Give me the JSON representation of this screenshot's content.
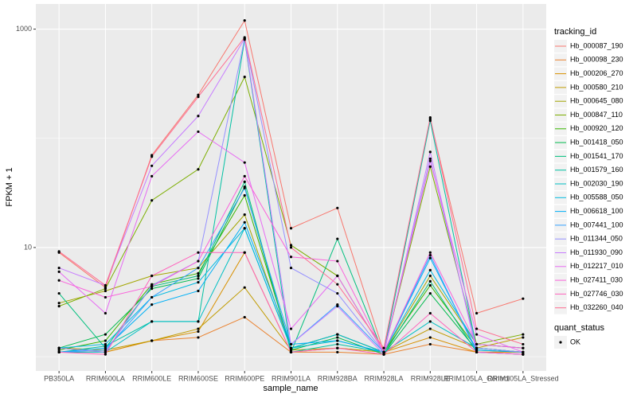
{
  "chart_data": {
    "type": "line",
    "y_scale": "log",
    "grid": true,
    "ylabel": "FPKM + 1",
    "xlabel": "sample_name",
    "ylim": [
      0.74,
      1700
    ],
    "yticks": [
      10,
      1000
    ],
    "categories": [
      "PB350LA",
      "RRIM600LA",
      "RRIM600LE",
      "RRIM600SE",
      "RRIM600PE",
      "RRIM901LA",
      "RRIM928BA",
      "RRIM928LA",
      "RRIM928LE",
      "RRIM105LA_Control",
      "RRIM105LA_Stressed"
    ],
    "legend_title": "tracking_id",
    "point_legend_title": "quant_status",
    "point_legend_label": "OK",
    "point_color": "#000000",
    "series": [
      {
        "name": "Hb_000087_190",
        "color": "#F8766D",
        "values": [
          9,
          4.3,
          70,
          250,
          1200,
          15,
          23,
          1.1,
          150,
          2.5,
          3.4
        ]
      },
      {
        "name": "Hb_000098_230",
        "color": "#EA8331",
        "values": [
          1.1,
          1.1,
          1.4,
          1.5,
          2.3,
          1.1,
          1.1,
          1.05,
          1.3,
          1.1,
          1.1
        ]
      },
      {
        "name": "Hb_000206_270",
        "color": "#D89000",
        "values": [
          1.2,
          1.1,
          1.4,
          1.7,
          9,
          1.1,
          1.2,
          1.1,
          1.5,
          1.1,
          1.1
        ]
      },
      {
        "name": "Hb_000580_210",
        "color": "#C09B00",
        "values": [
          1.2,
          1.15,
          1.4,
          1.8,
          4.3,
          1.15,
          1.2,
          1.1,
          1.8,
          1.2,
          1.5
        ]
      },
      {
        "name": "Hb_000645_080",
        "color": "#A3A500",
        "values": [
          3.1,
          4.0,
          5.5,
          6.5,
          20,
          1.2,
          1.6,
          1.1,
          5.5,
          1.3,
          1.2
        ]
      },
      {
        "name": "Hb_000847_110",
        "color": "#7CAE00",
        "values": [
          2.9,
          4.2,
          27,
          52,
          365,
          10.5,
          5.5,
          1.1,
          55,
          1.3,
          1.6
        ]
      },
      {
        "name": "Hb_000920_120",
        "color": "#39B600",
        "values": [
          1.15,
          1.4,
          4.6,
          5.8,
          30,
          1.2,
          1.6,
          1.1,
          4.5,
          1.2,
          1.1
        ]
      },
      {
        "name": "Hb_001418_050",
        "color": "#00BB4E",
        "values": [
          1.2,
          1.6,
          4.2,
          5.2,
          36,
          1.15,
          1.5,
          1.05,
          3.8,
          1.15,
          1.1
        ]
      },
      {
        "name": "Hb_001541_170",
        "color": "#00BF7D",
        "values": [
          3.8,
          1.2,
          4.4,
          5.5,
          40,
          1.1,
          12,
          1.05,
          4.9,
          1.1,
          1.05
        ]
      },
      {
        "name": "Hb_001579_160",
        "color": "#00C1A3",
        "values": [
          1.1,
          1.25,
          2.1,
          2.1,
          800,
          1.1,
          1.3,
          1.1,
          145,
          1.2,
          1.1
        ]
      },
      {
        "name": "Hb_002030_190",
        "color": "#00BFC4",
        "values": [
          1.1,
          1.1,
          2.1,
          2.1,
          15,
          1.2,
          1.4,
          1.1,
          2.1,
          1.2,
          1.1
        ]
      },
      {
        "name": "Hb_005588_050",
        "color": "#00BAE0",
        "values": [
          1.2,
          1.3,
          3.5,
          4.8,
          15,
          1.2,
          1.6,
          1.1,
          6.2,
          1.3,
          1.2
        ]
      },
      {
        "name": "Hb_006618_100",
        "color": "#00B0F6",
        "values": [
          1.1,
          1.2,
          3.0,
          4.0,
          17,
          1.3,
          1.4,
          1.1,
          8,
          1.15,
          1.1
        ]
      },
      {
        "name": "Hb_007441_100",
        "color": "#35A2FF",
        "values": [
          1.1,
          1.15,
          3.5,
          6.5,
          35,
          1.3,
          3.0,
          1.1,
          8.5,
          1.1,
          1.05
        ]
      },
      {
        "name": "Hb_011344_050",
        "color": "#9590FF",
        "values": [
          1.2,
          1.1,
          4.5,
          7.5,
          820,
          6.5,
          3.8,
          1.1,
          65,
          1.2,
          1.1
        ]
      },
      {
        "name": "Hb_011930_090",
        "color": "#C77CFF",
        "values": [
          6.5,
          4.5,
          56,
          160,
          820,
          1.3,
          2.9,
          1.05,
          75,
          1.1,
          1.05
        ]
      },
      {
        "name": "Hb_012217_010",
        "color": "#E76BF3",
        "values": [
          6.0,
          2.5,
          45,
          115,
          60,
          1.8,
          5.5,
          1.1,
          62,
          1.6,
          1.1
        ]
      },
      {
        "name": "Hb_027411_030",
        "color": "#FA62DB",
        "values": [
          5,
          3.5,
          4.4,
          7.5,
          45,
          8.2,
          7.5,
          1.1,
          9,
          1.3,
          1.2
        ]
      },
      {
        "name": "Hb_027746_030",
        "color": "#FF62BC",
        "values": [
          1.1,
          1.05,
          5.5,
          9,
          9,
          1.1,
          1.2,
          1.05,
          2.5,
          1.1,
          1.05
        ]
      },
      {
        "name": "Hb_032260_040",
        "color": "#FF6C91",
        "values": [
          9.2,
          4.5,
          68,
          240,
          840,
          10,
          4.6,
          1.2,
          155,
          1.8,
          1.3
        ]
      }
    ]
  }
}
